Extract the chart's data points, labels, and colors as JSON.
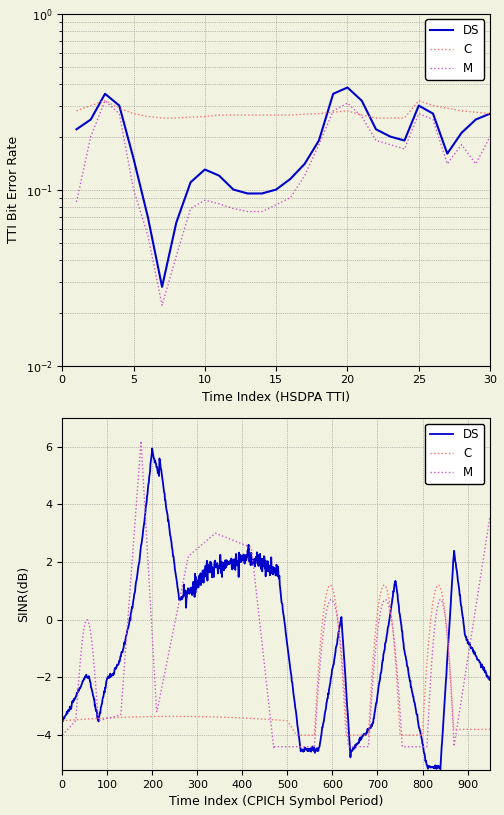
{
  "top": {
    "xlabel": "Time Index (HSDPA TTI)",
    "ylabel": "TTI Bit Error Rate",
    "xlim": [
      0,
      30
    ],
    "xticks": [
      0,
      5,
      10,
      15,
      20,
      25,
      30
    ],
    "legend": [
      "DS",
      "C",
      "M"
    ],
    "ds_x": [
      1,
      2,
      3,
      4,
      5,
      6,
      7,
      8,
      9,
      10,
      11,
      12,
      13,
      14,
      15,
      16,
      17,
      18,
      19,
      20,
      21,
      22,
      23,
      24,
      25,
      26,
      27,
      28,
      29,
      30
    ],
    "ds_y": [
      0.22,
      0.25,
      0.35,
      0.3,
      0.15,
      0.07,
      0.028,
      0.065,
      0.11,
      0.13,
      0.12,
      0.1,
      0.095,
      0.095,
      0.1,
      0.115,
      0.14,
      0.19,
      0.35,
      0.38,
      0.32,
      0.22,
      0.2,
      0.19,
      0.3,
      0.27,
      0.16,
      0.21,
      0.25,
      0.27
    ],
    "c_x": [
      1,
      2,
      3,
      4,
      5,
      6,
      7,
      8,
      9,
      10,
      11,
      12,
      13,
      14,
      15,
      16,
      17,
      18,
      19,
      20,
      21,
      22,
      23,
      24,
      25,
      26,
      27,
      28,
      29,
      30
    ],
    "c_y": [
      0.28,
      0.3,
      0.32,
      0.29,
      0.27,
      0.26,
      0.255,
      0.255,
      0.258,
      0.26,
      0.265,
      0.265,
      0.265,
      0.265,
      0.265,
      0.265,
      0.268,
      0.27,
      0.275,
      0.28,
      0.265,
      0.255,
      0.255,
      0.255,
      0.32,
      0.3,
      0.29,
      0.28,
      0.275,
      0.27
    ],
    "m_x": [
      1,
      2,
      3,
      4,
      5,
      6,
      7,
      8,
      9,
      10,
      11,
      12,
      13,
      14,
      15,
      16,
      17,
      18,
      19,
      20,
      21,
      22,
      23,
      24,
      25,
      26,
      27,
      28,
      29,
      30
    ],
    "m_y": [
      0.085,
      0.2,
      0.32,
      0.27,
      0.1,
      0.055,
      0.022,
      0.042,
      0.078,
      0.087,
      0.083,
      0.078,
      0.075,
      0.075,
      0.082,
      0.09,
      0.12,
      0.18,
      0.28,
      0.31,
      0.26,
      0.19,
      0.18,
      0.17,
      0.27,
      0.25,
      0.14,
      0.18,
      0.14,
      0.2
    ]
  },
  "bottom": {
    "xlabel": "Time Index (CPICH Symbol Period)",
    "ylabel": "SINR(dB)",
    "xlim": [
      0,
      950
    ],
    "ylim": [
      -5.2,
      7.0
    ],
    "yticks": [
      -4,
      -2,
      0,
      2,
      4,
      6
    ],
    "xticks": [
      0,
      100,
      200,
      300,
      400,
      500,
      600,
      700,
      800,
      900
    ],
    "legend": [
      "DS",
      "C",
      "M"
    ]
  },
  "colors": {
    "DS": "#0000cd",
    "C": "#ff7070",
    "M": "#cc55cc"
  },
  "bg_color": "#f2f2e0"
}
